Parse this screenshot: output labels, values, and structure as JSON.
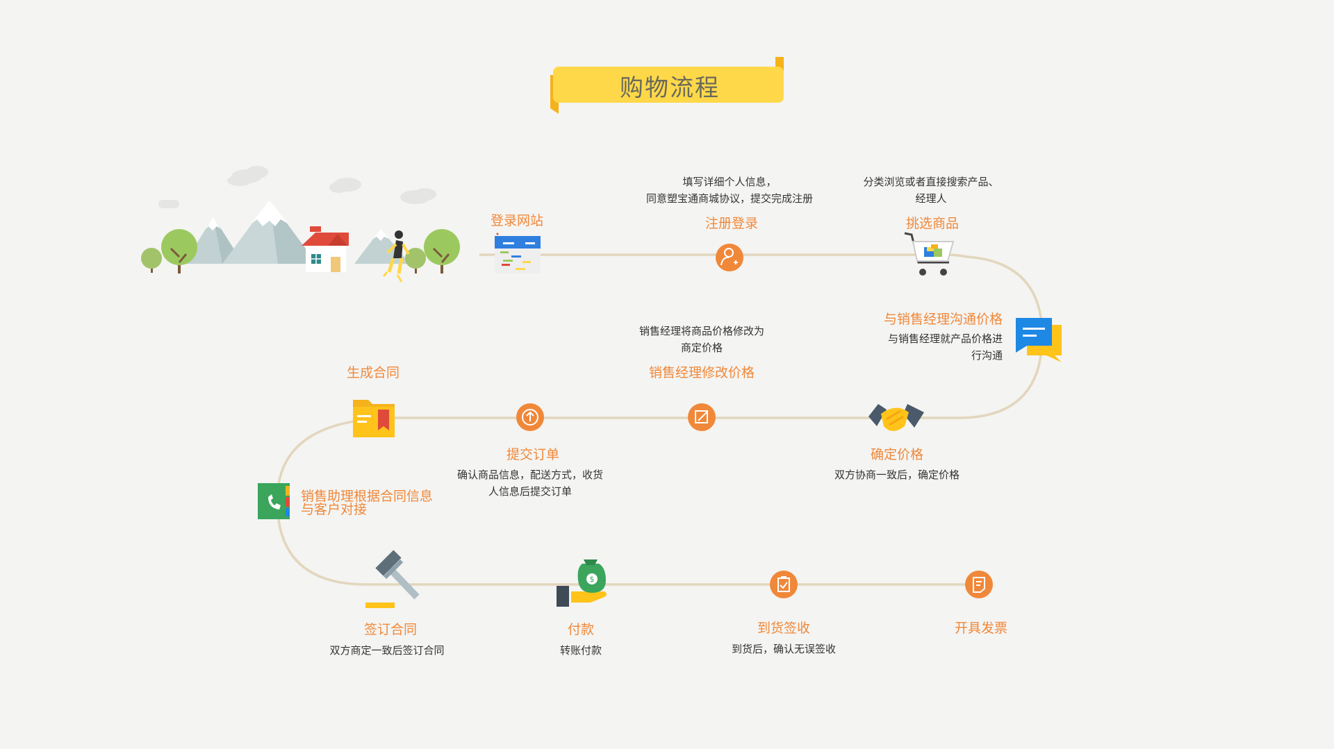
{
  "title": "购物流程",
  "colors": {
    "accent": "#f0883a",
    "path": "#e2d6bd",
    "banner": "#ffd84a",
    "banner_fold": "#f5b21b",
    "text": "#333333",
    "background": "#f4f4f2"
  },
  "steps": {
    "login": {
      "label": "登录网站",
      "icon": "browser-window-icon"
    },
    "register": {
      "label": "注册登录",
      "desc_lines": [
        "填写详细个人信息，",
        "同意塑宝通商城协议，提交完成注册"
      ],
      "icon": "user-add-icon"
    },
    "select": {
      "label": "挑选商品",
      "desc_lines": [
        "分类浏览或者直接搜索产品、",
        "经理人"
      ],
      "icon": "shopping-cart-icon"
    },
    "negotiate": {
      "label": "与销售经理沟通价格",
      "desc_lines": [
        "与销售经理就产品价格进",
        "行沟通"
      ],
      "icon": "chat-bubble-icon"
    },
    "confirm_price": {
      "label": "确定价格",
      "desc_lines": [
        "双方协商一致后，确定价格"
      ],
      "icon": "handshake-icon"
    },
    "modify_price": {
      "label": "销售经理修改价格",
      "desc_lines": [
        "销售经理将商品价格修改为",
        "商定价格"
      ],
      "icon": "edit-icon"
    },
    "submit_order": {
      "label": "提交订单",
      "desc_lines": [
        "确认商品信息，配送方式，收货",
        "人信息后提交订单"
      ],
      "icon": "upload-icon"
    },
    "generate_contract": {
      "label": "生成合同",
      "icon": "folder-icon"
    },
    "assistant_contact": {
      "label_lines": [
        "销售助理根据合同信息",
        "与客户对接"
      ],
      "icon": "phone-book-icon"
    },
    "sign_contract": {
      "label": "签订合同",
      "desc_lines": [
        "双方商定一致后签订合同"
      ],
      "icon": "gavel-icon"
    },
    "payment": {
      "label": "付款",
      "desc_lines": [
        "转账付款"
      ],
      "icon": "money-bag-icon"
    },
    "receive": {
      "label": "到货签收",
      "desc_lines": [
        "到货后，确认无误签收"
      ],
      "icon": "clipboard-check-icon"
    },
    "invoice": {
      "label": "开具发票",
      "icon": "receipt-icon"
    }
  }
}
